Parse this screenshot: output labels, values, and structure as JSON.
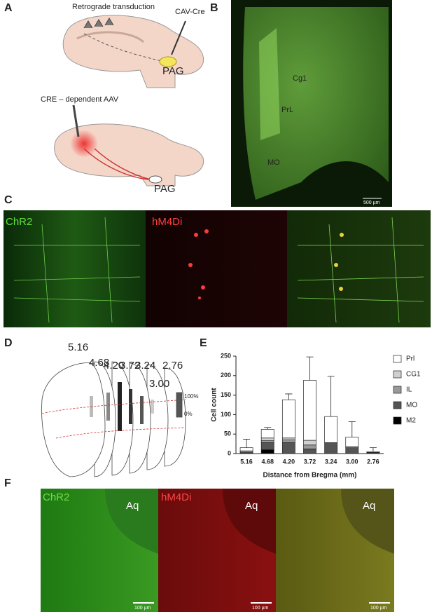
{
  "panel_labels": [
    "A",
    "B",
    "C",
    "D",
    "E",
    "F"
  ],
  "panel_a": {
    "top": {
      "title": "Retrograde transduction",
      "injection": "CAV-Cre",
      "target": "PAG"
    },
    "bottom": {
      "title": "CRE – dependent AAV",
      "target": "PAG"
    }
  },
  "panel_b": {
    "regions": [
      "Cg1",
      "PrL",
      "MO"
    ],
    "scale_bar": "500 µm"
  },
  "panel_c": {
    "channels": [
      "ChR2",
      "hM4Di"
    ]
  },
  "panel_d": {
    "slices": [
      "5.16",
      "4.68",
      "4.20",
      "3.72",
      "3.24",
      "3.00",
      "2.76"
    ],
    "colorbar": [
      "100%",
      "0%"
    ]
  },
  "panel_f": {
    "channels": [
      "ChR2",
      "hM4Di"
    ],
    "region": "Aq",
    "scale_bar": "100 µm"
  },
  "chart_data": {
    "type": "bar",
    "stacked": true,
    "x_label": "Distance from Bregma (mm)",
    "y_label": "Cell count",
    "categories": [
      "5.16",
      "4.68",
      "4.20",
      "3.72",
      "3.24",
      "3.00",
      "2.76"
    ],
    "series": [
      {
        "name": "M2",
        "color": "#000000",
        "values": [
          0,
          10,
          0,
          0,
          0,
          0,
          0
        ]
      },
      {
        "name": "MO",
        "color": "#555555",
        "values": [
          2,
          18,
          28,
          12,
          28,
          15,
          2
        ]
      },
      {
        "name": "IL",
        "color": "#999999",
        "values": [
          2,
          5,
          7,
          10,
          0,
          0,
          1
        ]
      },
      {
        "name": "CG1",
        "color": "#d0d0d0",
        "values": [
          3,
          7,
          5,
          12,
          0,
          3,
          0
        ]
      },
      {
        "name": "Prl",
        "color": "#ffffff",
        "values": [
          8,
          22,
          98,
          154,
          67,
          24,
          2
        ],
        "errors": [
          22,
          5,
          15,
          60,
          103,
          40,
          10
        ]
      }
    ],
    "ylim": [
      0,
      250
    ],
    "yticks": [
      0,
      50,
      100,
      150,
      200,
      250
    ],
    "legend": "right"
  }
}
